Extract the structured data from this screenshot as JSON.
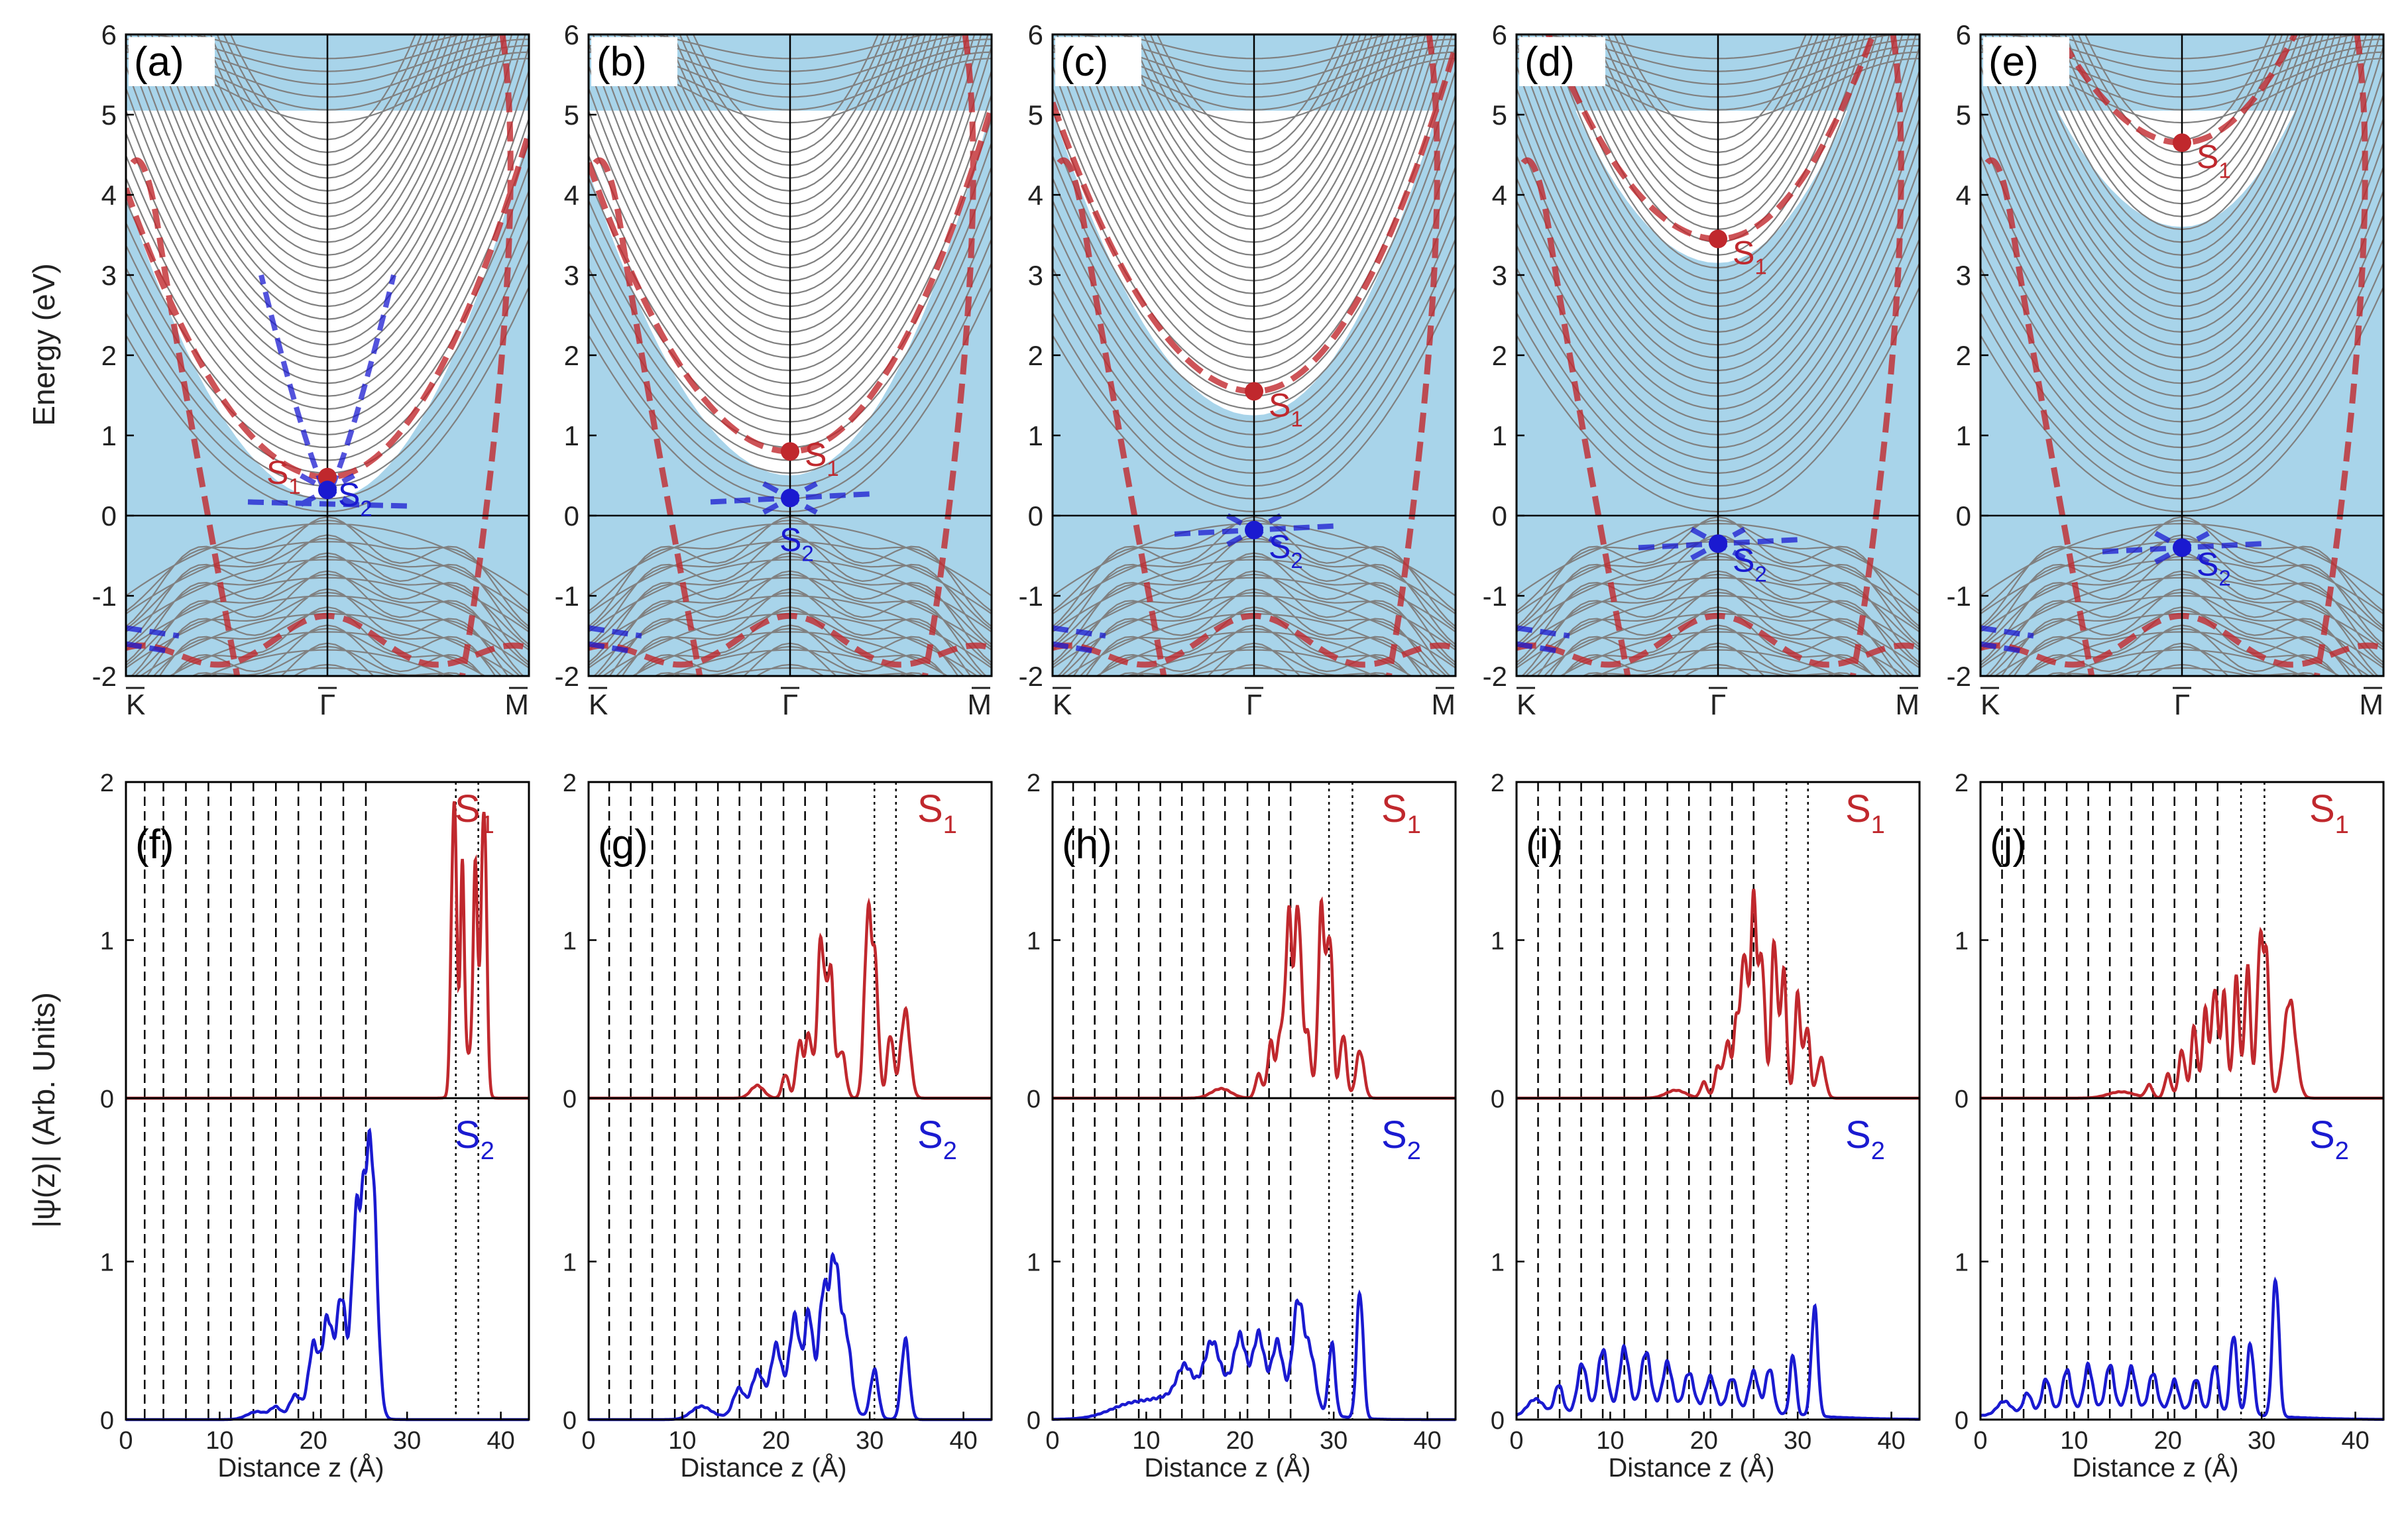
{
  "figure": {
    "y_axis_label_top": "Energy (eV)",
    "y_axis_label_bottom": "|ψ(z)| (Arb. Units)",
    "x_axis_label_bottom": "Distance z (Å)",
    "colors": {
      "s1": "#c0282d",
      "s2": "#1a1ad0",
      "bulk": "#a8d4ea",
      "slab": "#808080"
    }
  },
  "chart_data": [
    {
      "type": "line",
      "panel": "(a)",
      "ylabel": "Energy (eV)",
      "ylim": [
        -2,
        6
      ],
      "y_ticks": [
        "-2",
        "-1",
        "0",
        "1",
        "2",
        "3",
        "4",
        "5",
        "6"
      ],
      "k_labels": [
        "K",
        "Γ",
        "M"
      ],
      "states": [
        {
          "name": "S1",
          "label_main": "S",
          "label_sub": "1",
          "energy": 0.48
        },
        {
          "name": "S2",
          "label_main": "S",
          "label_sub": "2",
          "energy": 0.32
        }
      ]
    },
    {
      "type": "line",
      "panel": "(b)",
      "ylabel": "",
      "ylim": [
        -2,
        6
      ],
      "y_ticks": [
        "-2",
        "-1",
        "0",
        "1",
        "2",
        "3",
        "4",
        "5",
        "6"
      ],
      "k_labels": [
        "K",
        "Γ",
        "M"
      ],
      "states": [
        {
          "name": "S1",
          "label_main": "S",
          "label_sub": "1",
          "energy": 0.8
        },
        {
          "name": "S2",
          "label_main": "S",
          "label_sub": "2",
          "energy": 0.22
        }
      ]
    },
    {
      "type": "line",
      "panel": "(c)",
      "ylabel": "",
      "ylim": [
        -2,
        6
      ],
      "y_ticks": [
        "-2",
        "-1",
        "0",
        "1",
        "2",
        "3",
        "4",
        "5",
        "6"
      ],
      "k_labels": [
        "K",
        "Γ",
        "M"
      ],
      "states": [
        {
          "name": "S1",
          "label_main": "S",
          "label_sub": "1",
          "energy": 1.55
        },
        {
          "name": "S2",
          "label_main": "S",
          "label_sub": "2",
          "energy": -0.18
        }
      ]
    },
    {
      "type": "line",
      "panel": "(d)",
      "ylabel": "",
      "ylim": [
        -2,
        6
      ],
      "y_ticks": [
        "-2",
        "-1",
        "0",
        "1",
        "2",
        "3",
        "4",
        "5",
        "6"
      ],
      "k_labels": [
        "K",
        "Γ",
        "M"
      ],
      "states": [
        {
          "name": "S1",
          "label_main": "S",
          "label_sub": "1",
          "energy": 3.45
        },
        {
          "name": "S2",
          "label_main": "S",
          "label_sub": "2",
          "energy": -0.35
        }
      ]
    },
    {
      "type": "line",
      "panel": "(e)",
      "ylabel": "",
      "ylim": [
        -2,
        6
      ],
      "y_ticks": [
        "-2",
        "-1",
        "0",
        "1",
        "2",
        "3",
        "4",
        "5",
        "6"
      ],
      "k_labels": [
        "K",
        "Γ",
        "M"
      ],
      "states": [
        {
          "name": "S1",
          "label_main": "S",
          "label_sub": "1",
          "energy": 4.65
        },
        {
          "name": "S2",
          "label_main": "S",
          "label_sub": "2",
          "energy": -0.4
        }
      ]
    },
    {
      "type": "line",
      "panel": "(f)",
      "xlabel": "Distance z (Å)",
      "xlim": [
        0,
        43
      ],
      "ylim": [
        0,
        2
      ],
      "x_ticks": [
        "0",
        "10",
        "20",
        "30",
        "40"
      ],
      "y_ticks_top": [
        "0",
        "1",
        "2"
      ],
      "y_ticks_bottom": [
        "0",
        "1"
      ],
      "dashed_planes": [
        2,
        4,
        6.4,
        8.8,
        11.2,
        13.6,
        16,
        18.4,
        20.8,
        23.2,
        25.6
      ],
      "dotted_planes": [
        35.2,
        37.6
      ],
      "series": [
        {
          "name": "S1",
          "label_main": "S",
          "label_sub": "1",
          "peaks": [
            [
              35.0,
              1.85,
              0.4
            ],
            [
              35.9,
              1.25,
              0.3
            ],
            [
              37.3,
              1.3,
              0.35
            ],
            [
              38.2,
              1.85,
              0.4
            ],
            [
              36.5,
              0.25,
              1.2
            ]
          ]
        },
        {
          "name": "S2",
          "label_main": "S",
          "label_sub": "2",
          "peaks": [
            [
              14,
              0.05,
              1.5
            ],
            [
              16,
              0.07,
              0.8
            ],
            [
              18,
              0.12,
              0.8
            ],
            [
              20,
              0.35,
              0.7
            ],
            [
              21.5,
              0.45,
              0.7
            ],
            [
              23,
              0.6,
              0.7
            ],
            [
              24.5,
              1.05,
              0.6
            ],
            [
              25.3,
              0.8,
              0.6
            ],
            [
              26.2,
              1.62,
              0.8
            ],
            [
              22,
              0.2,
              3.0
            ]
          ]
        }
      ]
    },
    {
      "type": "line",
      "panel": "(g)",
      "xlabel": "Distance z (Å)",
      "xlim": [
        0,
        43
      ],
      "ylim": [
        0,
        2
      ],
      "x_ticks": [
        "0",
        "10",
        "20",
        "30",
        "40"
      ],
      "y_ticks_top": [
        "0",
        "1",
        "2"
      ],
      "y_ticks_bottom": [
        "0",
        "1"
      ],
      "dashed_planes": [
        2.2,
        4.5,
        6.8,
        9.2,
        11.5,
        13.8,
        16.1,
        18.4,
        20.8,
        23.1,
        25.4
      ],
      "dotted_planes": [
        30.5,
        32.8
      ],
      "series": [
        {
          "name": "S1",
          "label_main": "S",
          "label_sub": "1",
          "peaks": [
            [
              21,
              0.15,
              0.5
            ],
            [
              22.5,
              0.35,
              0.5
            ],
            [
              23.5,
              0.4,
              0.5
            ],
            [
              24.8,
              1.0,
              0.55
            ],
            [
              25.8,
              0.8,
              0.5
            ],
            [
              27,
              0.3,
              0.6
            ],
            [
              29.8,
              1.12,
              0.55
            ],
            [
              30.6,
              0.75,
              0.5
            ],
            [
              32.2,
              0.4,
              0.5
            ],
            [
              33.8,
              0.55,
              0.7
            ],
            [
              18,
              0.08,
              1.0
            ]
          ]
        },
        {
          "name": "S2",
          "label_main": "S",
          "label_sub": "2",
          "peaks": [
            [
              12,
              0.08,
              1.5
            ],
            [
              16,
              0.15,
              0.8
            ],
            [
              18,
              0.2,
              0.8
            ],
            [
              20,
              0.3,
              0.7
            ],
            [
              22,
              0.45,
              0.7
            ],
            [
              23.5,
              0.5,
              0.6
            ],
            [
              25,
              0.6,
              0.6
            ],
            [
              26.2,
              0.9,
              0.8
            ],
            [
              27.5,
              0.45,
              0.8
            ],
            [
              30.5,
              0.3,
              0.6
            ],
            [
              33.8,
              0.5,
              0.6
            ],
            [
              22,
              0.2,
              5.0
            ]
          ]
        }
      ]
    },
    {
      "type": "line",
      "panel": "(h)",
      "xlabel": "Distance z (Å)",
      "xlim": [
        0,
        43
      ],
      "ylim": [
        0,
        2
      ],
      "x_ticks": [
        "0",
        "10",
        "20",
        "30",
        "40"
      ],
      "y_ticks_top": [
        "0",
        "1",
        "2"
      ],
      "y_ticks_bottom": [
        "0",
        "1"
      ],
      "dashed_planes": [
        2.2,
        4.5,
        6.8,
        9.2,
        11.5,
        13.8,
        16.1,
        18.4,
        20.8,
        23.1,
        25.4
      ],
      "dotted_planes": [
        29.5,
        32
      ],
      "series": [
        {
          "name": "S1",
          "label_main": "S",
          "label_sub": "1",
          "peaks": [
            [
              22,
              0.15,
              0.5
            ],
            [
              23.3,
              0.35,
              0.5
            ],
            [
              24.3,
              0.4,
              0.45
            ],
            [
              25.2,
              1.15,
              0.5
            ],
            [
              26.2,
              1.2,
              0.5
            ],
            [
              27.2,
              0.4,
              0.5
            ],
            [
              28.7,
              1.2,
              0.5
            ],
            [
              29.6,
              1.0,
              0.45
            ],
            [
              31,
              0.4,
              0.5
            ],
            [
              32.8,
              0.3,
              0.6
            ],
            [
              18,
              0.06,
              1.5
            ]
          ]
        },
        {
          "name": "S2",
          "label_main": "S",
          "label_sub": "2",
          "peaks": [
            [
              8,
              0.05,
              3.0
            ],
            [
              14,
              0.15,
              1.0
            ],
            [
              17,
              0.25,
              1.0
            ],
            [
              20,
              0.3,
              0.8
            ],
            [
              22,
              0.35,
              0.8
            ],
            [
              24,
              0.35,
              0.8
            ],
            [
              26.2,
              0.65,
              0.8
            ],
            [
              27.5,
              0.35,
              0.8
            ],
            [
              29.8,
              0.45,
              0.5
            ],
            [
              32.8,
              0.8,
              0.5
            ],
            [
              18,
              0.25,
              8.0
            ]
          ]
        }
      ]
    },
    {
      "type": "line",
      "panel": "(i)",
      "xlabel": "Distance z (Å)",
      "xlim": [
        0,
        43
      ],
      "ylim": [
        0,
        2
      ],
      "x_ticks": [
        "0",
        "10",
        "20",
        "30",
        "40"
      ],
      "y_ticks_top": [
        "0",
        "1",
        "2"
      ],
      "y_ticks_bottom": [
        "0",
        "1"
      ],
      "dashed_planes": [
        2.3,
        4.6,
        6.9,
        9.2,
        11.5,
        13.8,
        16.1,
        18.4,
        20.7,
        23,
        25.3
      ],
      "dotted_planes": [
        28.8,
        31.1
      ],
      "series": [
        {
          "name": "S1",
          "label_main": "S",
          "label_sub": "1",
          "peaks": [
            [
              20,
              0.1,
              0.5
            ],
            [
              21.5,
              0.2,
              0.5
            ],
            [
              22.5,
              0.35,
              0.5
            ],
            [
              23.5,
              0.5,
              0.45
            ],
            [
              24.3,
              0.9,
              0.45
            ],
            [
              25.3,
              1.25,
              0.5
            ],
            [
              26.2,
              0.85,
              0.45
            ],
            [
              27.5,
              1.0,
              0.45
            ],
            [
              28.5,
              0.8,
              0.45
            ],
            [
              30,
              0.65,
              0.45
            ],
            [
              31,
              0.45,
              0.45
            ],
            [
              32.5,
              0.25,
              0.6
            ],
            [
              17,
              0.05,
              1.5
            ]
          ]
        },
        {
          "name": "S2",
          "label_main": "S",
          "label_sub": "2",
          "peaks": [
            [
              2,
              0.1,
              1.2
            ],
            [
              4.5,
              0.18,
              0.6
            ],
            [
              7,
              0.3,
              0.7
            ],
            [
              9.2,
              0.38,
              0.7
            ],
            [
              11.5,
              0.38,
              0.7
            ],
            [
              13.8,
              0.35,
              0.7
            ],
            [
              16.1,
              0.28,
              0.7
            ],
            [
              18.4,
              0.22,
              0.7
            ],
            [
              20.7,
              0.2,
              0.7
            ],
            [
              23,
              0.2,
              0.7
            ],
            [
              25.3,
              0.25,
              0.7
            ],
            [
              27,
              0.28,
              0.6
            ],
            [
              29.5,
              0.38,
              0.45
            ],
            [
              31.8,
              0.68,
              0.5
            ],
            [
              16,
              0.08,
              14
            ]
          ]
        }
      ]
    },
    {
      "type": "line",
      "panel": "(j)",
      "xlabel": "Distance z (Å)",
      "xlim": [
        0,
        43
      ],
      "ylim": [
        0,
        2
      ],
      "x_ticks": [
        "0",
        "10",
        "20",
        "30",
        "40"
      ],
      "y_ticks_top": [
        "0",
        "1",
        "2"
      ],
      "y_ticks_bottom": [
        "0",
        "1"
      ],
      "dashed_planes": [
        2.3,
        4.6,
        6.9,
        9.2,
        11.5,
        13.8,
        16.1,
        18.4,
        20.7,
        23,
        25.3
      ],
      "dotted_planes": [
        27.8,
        30.3
      ],
      "series": [
        {
          "name": "S1",
          "label_main": "S",
          "label_sub": "1",
          "peaks": [
            [
              18,
              0.08,
              0.5
            ],
            [
              20,
              0.15,
              0.5
            ],
            [
              21.5,
              0.3,
              0.5
            ],
            [
              22.8,
              0.45,
              0.45
            ],
            [
              24,
              0.55,
              0.45
            ],
            [
              25,
              0.7,
              0.45
            ],
            [
              26,
              0.65,
              0.45
            ],
            [
              27.3,
              0.75,
              0.45
            ],
            [
              28.5,
              0.82,
              0.45
            ],
            [
              29.8,
              0.92,
              0.45
            ],
            [
              30.5,
              0.85,
              0.45
            ],
            [
              33,
              0.62,
              0.9
            ],
            [
              15,
              0.04,
              2.0
            ]
          ]
        },
        {
          "name": "S2",
          "label_main": "S",
          "label_sub": "2",
          "peaks": [
            [
              2.5,
              0.08,
              1.0
            ],
            [
              5,
              0.12,
              0.6
            ],
            [
              7,
              0.2,
              0.6
            ],
            [
              9.2,
              0.25,
              0.6
            ],
            [
              11.5,
              0.27,
              0.6
            ],
            [
              13.8,
              0.27,
              0.6
            ],
            [
              16.1,
              0.25,
              0.6
            ],
            [
              18.4,
              0.22,
              0.6
            ],
            [
              20.7,
              0.18,
              0.6
            ],
            [
              23,
              0.2,
              0.6
            ],
            [
              25,
              0.3,
              0.55
            ],
            [
              27,
              0.5,
              0.5
            ],
            [
              28.8,
              0.45,
              0.5
            ],
            [
              31.5,
              0.88,
              0.5
            ],
            [
              15,
              0.08,
              14
            ]
          ]
        }
      ]
    }
  ]
}
